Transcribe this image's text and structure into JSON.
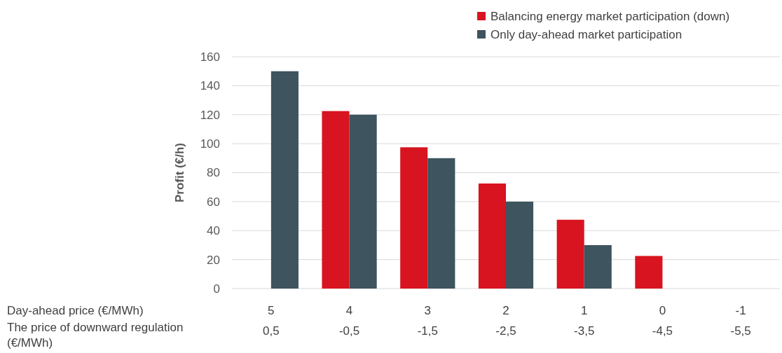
{
  "chart_data": {
    "type": "bar",
    "ylabel": "Profit (€/h)",
    "categories": [
      "5\n0,5",
      "4\n-0,5",
      "3\n-1,5",
      "2\n-2,5",
      "1\n-3,5",
      "0\n-4,5",
      "-1\n-5,5"
    ],
    "series": [
      {
        "name": "Balancing energy market participation (down)",
        "color": "#d7141f",
        "values": [
          0,
          122.5,
          97.5,
          72.5,
          47.5,
          22.5,
          0
        ]
      },
      {
        "name": "Only day-ahead market participation",
        "color": "#3e545f",
        "values": [
          150,
          120,
          90,
          60,
          30,
          0,
          0
        ]
      }
    ],
    "ylim": [
      0,
      160
    ],
    "yticks": [
      0,
      20,
      40,
      60,
      80,
      100,
      120,
      140,
      160
    ],
    "grid": "y",
    "legend": "top right",
    "annotations": [
      "Day-ahead price (€/MWh)",
      "The price of downward regulation\n(€/MWh)"
    ]
  }
}
